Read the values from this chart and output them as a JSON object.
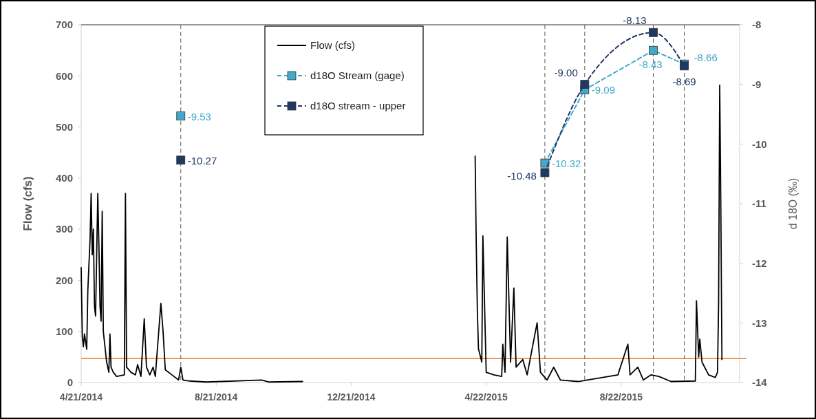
{
  "chart_data": {
    "type": "line",
    "ylabel": "Flow (cfs)",
    "y2label": "d 18O (‰)",
    "xlim": [
      "2014-04-21",
      "2015-12-07"
    ],
    "xticks": [
      {
        "value": "2014-04-21",
        "label": "4/21/2014"
      },
      {
        "value": "2014-08-21",
        "label": "8/21/2014"
      },
      {
        "value": "2014-12-21",
        "label": "12/21/2014"
      },
      {
        "value": "2015-04-22",
        "label": "4/22/2015"
      },
      {
        "value": "2015-08-22",
        "label": "8/22/2015"
      }
    ],
    "ylim": [
      0,
      700
    ],
    "yticks": [
      0,
      100,
      200,
      300,
      400,
      500,
      600,
      700
    ],
    "y2lim": [
      -14,
      -8
    ],
    "y2ticks": [
      -14,
      -13,
      -12,
      -11,
      -10,
      -9,
      -8
    ],
    "grid": false,
    "legend": "top",
    "ref_lines": [
      {
        "axis": "y",
        "value": 47,
        "color": "#f08a3c",
        "line_style": "solid"
      },
      {
        "axis": "x",
        "value": "2014-07-20",
        "color": "#595959",
        "line_style": "dashed"
      },
      {
        "axis": "x",
        "value": "2015-06-14",
        "color": "#595959",
        "line_style": "dashed"
      },
      {
        "axis": "x",
        "value": "2015-07-20",
        "color": "#595959",
        "line_style": "dashed"
      },
      {
        "axis": "x",
        "value": "2015-09-20",
        "color": "#595959",
        "line_style": "dashed"
      },
      {
        "axis": "x",
        "value": "2015-10-18",
        "color": "#595959",
        "line_style": "dashed"
      }
    ],
    "series": [
      {
        "name": "Flow (cfs)",
        "color": "#000000",
        "line_style": "solid",
        "marker": "none",
        "x": [
          "2014-04-21",
          "2014-04-22",
          "2014-04-23",
          "2014-04-24",
          "2014-04-26",
          "2014-04-27",
          "2014-04-28",
          "2014-04-29",
          "2014-04-30",
          "2014-05-01",
          "2014-05-02",
          "2014-05-03",
          "2014-05-04",
          "2014-05-05",
          "2014-05-06",
          "2014-05-07",
          "2014-05-08",
          "2014-05-09",
          "2014-05-10",
          "2014-05-11",
          "2014-05-12",
          "2014-05-14",
          "2014-05-16",
          "2014-05-17",
          "2014-05-18",
          "2014-05-20",
          "2014-05-23",
          "2014-05-30",
          "2014-05-31",
          "2014-06-01",
          "2014-06-05",
          "2014-06-09",
          "2014-06-11",
          "2014-06-14",
          "2014-06-17",
          "2014-06-19",
          "2014-06-22",
          "2014-06-25",
          "2014-06-27",
          "2014-07-02",
          "2014-07-04",
          "2014-07-06",
          "2014-07-12",
          "2014-07-18",
          "2014-07-20",
          "2014-07-22",
          "2014-07-28",
          "2014-08-12",
          "2014-10-01",
          "2014-10-08",
          "2014-11-07",
          "2015-01-01",
          "2015-04-12",
          "2015-04-13",
          "2015-04-14",
          "2015-04-15",
          "2015-04-18",
          "2015-04-19",
          "2015-04-22",
          "2015-04-29",
          "2015-05-06",
          "2015-05-07",
          "2015-05-09",
          "2015-05-11",
          "2015-05-14",
          "2015-05-17",
          "2015-05-19",
          "2015-05-25",
          "2015-05-29",
          "2015-06-07",
          "2015-06-10",
          "2015-06-16",
          "2015-06-22",
          "2015-06-28",
          "2015-07-14",
          "2015-08-19",
          "2015-08-28",
          "2015-08-30",
          "2015-09-06",
          "2015-09-11",
          "2015-09-18",
          "2015-09-25",
          "2015-10-06",
          "2015-10-28",
          "2015-10-29",
          "2015-10-31",
          "2015-11-01",
          "2015-11-03",
          "2015-11-09",
          "2015-11-15",
          "2015-11-17",
          "2015-11-18",
          "2015-11-19",
          "2015-11-20",
          "2015-11-21"
        ],
        "values": [
          225,
          90,
          70,
          95,
          65,
          180,
          230,
          280,
          370,
          250,
          300,
          150,
          130,
          250,
          370,
          270,
          150,
          120,
          335,
          100,
          80,
          40,
          20,
          95,
          30,
          20,
          12,
          15,
          370,
          30,
          20,
          15,
          35,
          12,
          125,
          30,
          15,
          30,
          12,
          155,
          100,
          25,
          15,
          5,
          30,
          5,
          3,
          1,
          5,
          1,
          2,
          null,
          443,
          270,
          140,
          66,
          40,
          287,
          20,
          15,
          12,
          75,
          20,
          285,
          40,
          185,
          30,
          45,
          15,
          117,
          20,
          5,
          30,
          5,
          2,
          15,
          75,
          15,
          30,
          5,
          15,
          12,
          2,
          3,
          160,
          50,
          85,
          40,
          15,
          10,
          20,
          155,
          582,
          350,
          45
        ]
      },
      {
        "name": "d18O Stream (gage)",
        "axis": "y2",
        "color": "#41a9c9",
        "line_style": "dashed",
        "marker": "square",
        "x": [
          "2015-06-14",
          "2015-07-20",
          "2015-09-20",
          "2015-10-18"
        ],
        "values": [
          -10.32,
          -9.09,
          -8.43,
          -8.66
        ],
        "value_labels": [
          "-10.32",
          "-9.09",
          "-8.43",
          "-8.66"
        ]
      },
      {
        "name": "d18O stream - upper",
        "axis": "y2",
        "color": "#1f3864",
        "line_style": "dashed",
        "marker": "square",
        "x": [
          "2015-06-14",
          "2015-07-20",
          "2015-09-20",
          "2015-10-18"
        ],
        "values": [
          -10.48,
          -9.0,
          -8.13,
          -8.69
        ],
        "value_labels": [
          "-10.48",
          "-9.00",
          "-8.13",
          "-8.69"
        ]
      },
      {
        "type": "scatter",
        "axis": "y2",
        "color": "#41a9c9",
        "marker": "square",
        "x": [
          "2014-07-20"
        ],
        "values": [
          -9.53
        ],
        "value_labels": [
          "-9.53"
        ]
      },
      {
        "type": "scatter",
        "axis": "y2",
        "color": "#1f3864",
        "marker": "square",
        "x": [
          "2014-07-20"
        ],
        "values": [
          -10.27
        ],
        "value_labels": [
          "-10.27"
        ]
      }
    ]
  }
}
